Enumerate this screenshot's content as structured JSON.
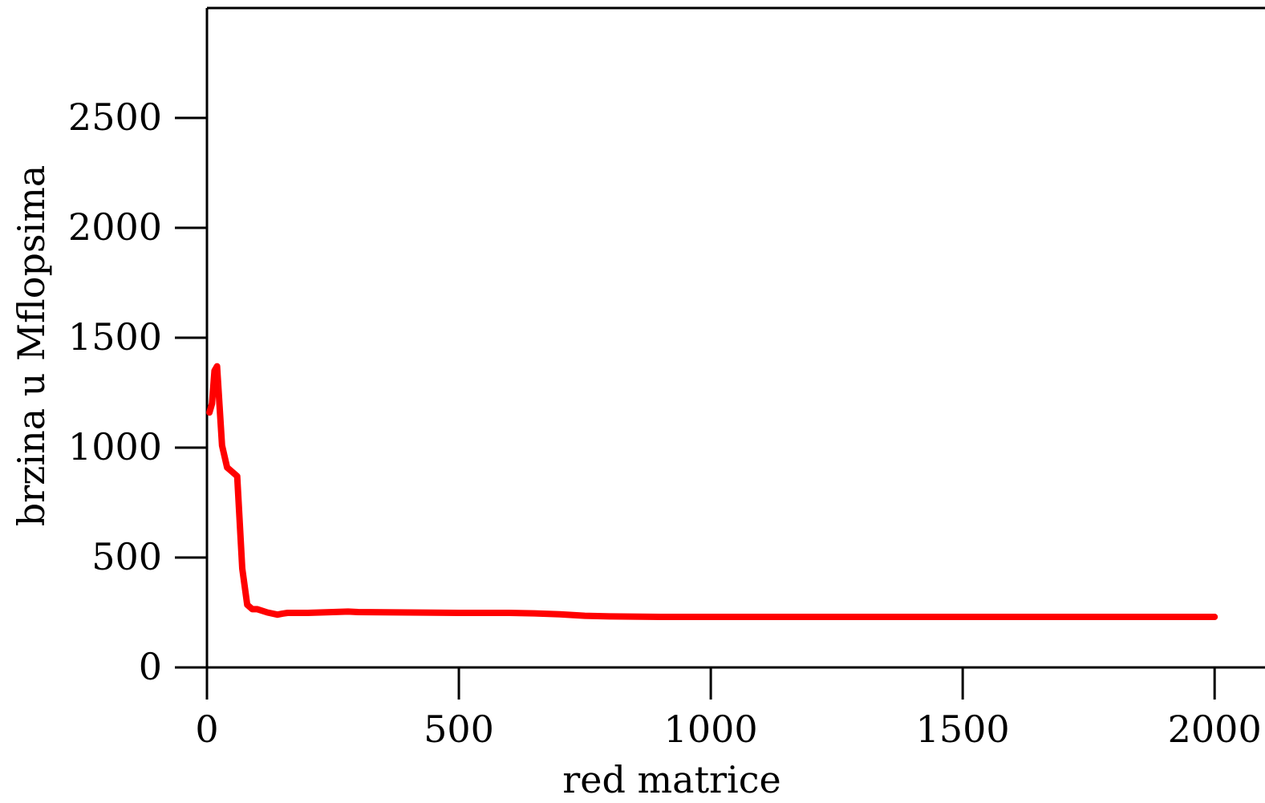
{
  "chart_data": {
    "type": "line",
    "title": "",
    "xlabel": "red matrice",
    "ylabel": "brzina u Mflopsima",
    "xlim": [
      0,
      2100
    ],
    "ylim": [
      0,
      3000
    ],
    "xticks": [
      0,
      500,
      1000,
      1500,
      2000
    ],
    "yticks": [
      0,
      500,
      1000,
      1500,
      2000,
      2500
    ],
    "xtick_labels": [
      "0",
      "500",
      "1000",
      "1500",
      "2000"
    ],
    "ytick_labels": [
      "0",
      "500",
      "1000",
      "1500",
      "2000",
      "2500"
    ],
    "grid": false,
    "legend": "none",
    "series": [
      {
        "color": "#ff0000",
        "x": [
          5,
          10,
          15,
          20,
          30,
          40,
          50,
          60,
          70,
          80,
          90,
          100,
          120,
          140,
          150,
          160,
          180,
          200,
          250,
          280,
          300,
          400,
          500,
          600,
          650,
          700,
          750,
          800,
          900,
          950,
          1000,
          1200,
          1500,
          1800,
          2000
        ],
        "y": [
          1160,
          1200,
          1350,
          1370,
          1010,
          910,
          890,
          870,
          450,
          285,
          265,
          265,
          250,
          240,
          245,
          248,
          248,
          248,
          252,
          254,
          252,
          250,
          248,
          248,
          246,
          242,
          235,
          232,
          230,
          230,
          230,
          230,
          230,
          230,
          230
        ]
      }
    ]
  }
}
